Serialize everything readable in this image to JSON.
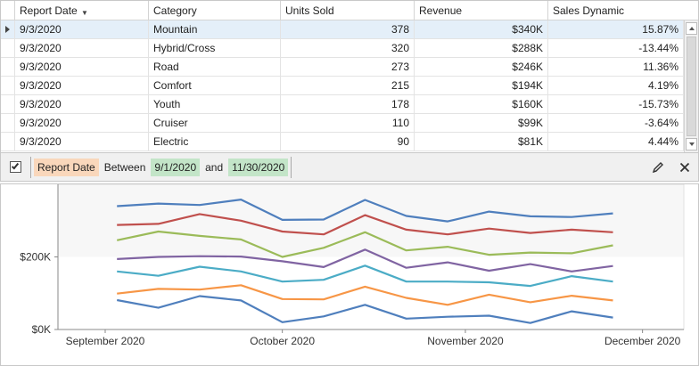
{
  "grid": {
    "columns": [
      {
        "key": "date",
        "label": "Report Date",
        "filtered": true
      },
      {
        "key": "category",
        "label": "Category"
      },
      {
        "key": "units",
        "label": "Units Sold"
      },
      {
        "key": "revenue",
        "label": "Revenue"
      },
      {
        "key": "sales",
        "label": "Sales Dynamic"
      }
    ],
    "rows": [
      {
        "date": "9/3/2020",
        "category": "Mountain",
        "units": "378",
        "revenue": "$340K",
        "sales": "15.87%",
        "selected": true
      },
      {
        "date": "9/3/2020",
        "category": "Hybrid/Cross",
        "units": "320",
        "revenue": "$288K",
        "sales": "-13.44%"
      },
      {
        "date": "9/3/2020",
        "category": "Road",
        "units": "273",
        "revenue": "$246K",
        "sales": "11.36%"
      },
      {
        "date": "9/3/2020",
        "category": "Comfort",
        "units": "215",
        "revenue": "$194K",
        "sales": "4.19%"
      },
      {
        "date": "9/3/2020",
        "category": "Youth",
        "units": "178",
        "revenue": "$160K",
        "sales": "-15.73%"
      },
      {
        "date": "9/3/2020",
        "category": "Cruiser",
        "units": "110",
        "revenue": "$99K",
        "sales": "-3.64%"
      },
      {
        "date": "9/3/2020",
        "category": "Electric",
        "units": "90",
        "revenue": "$81K",
        "sales": "4.44%"
      }
    ]
  },
  "filter_panel": {
    "enabled": true,
    "field": "Report Date",
    "operator": "Between",
    "value_from": "9/1/2020",
    "conjunction": "and",
    "value_to": "11/30/2020"
  },
  "chart_data": {
    "type": "line",
    "title": "",
    "xlabel": "",
    "ylabel": "",
    "ylim": [
      0,
      400000
    ],
    "x_ticks": [
      {
        "date": "2020-09-01",
        "label": "September 2020"
      },
      {
        "date": "2020-10-01",
        "label": "October 2020"
      },
      {
        "date": "2020-11-01",
        "label": "November 2020"
      },
      {
        "date": "2020-12-01",
        "label": "December 2020"
      }
    ],
    "y_ticks": [
      {
        "value": 0,
        "label": "$0K"
      },
      {
        "value": 200000,
        "label": "$200K"
      }
    ],
    "x": [
      "2020-09-03",
      "2020-09-10",
      "2020-09-17",
      "2020-09-24",
      "2020-10-01",
      "2020-10-08",
      "2020-10-15",
      "2020-10-22",
      "2020-10-29",
      "2020-11-05",
      "2020-11-12",
      "2020-11-19",
      "2020-11-26"
    ],
    "series": [
      {
        "color": "#4f7fbd",
        "values": [
          340000,
          347000,
          343000,
          358000,
          302000,
          303000,
          357000,
          313000,
          298000,
          325000,
          312000,
          310000,
          320000
        ]
      },
      {
        "color": "#c0504d",
        "values": [
          288000,
          291000,
          318000,
          300000,
          270000,
          262000,
          315000,
          275000,
          262000,
          278000,
          266000,
          275000,
          268000
        ]
      },
      {
        "color": "#9bbb59",
        "values": [
          246000,
          270000,
          258000,
          248000,
          200000,
          225000,
          268000,
          218000,
          228000,
          206000,
          212000,
          210000,
          232000
        ]
      },
      {
        "color": "#8064a2",
        "values": [
          194000,
          200000,
          202000,
          201000,
          188000,
          172000,
          220000,
          170000,
          185000,
          162000,
          180000,
          160000,
          175000
        ]
      },
      {
        "color": "#4bacc6",
        "values": [
          160000,
          148000,
          173000,
          160000,
          132000,
          137000,
          176000,
          132000,
          132000,
          130000,
          120000,
          147000,
          132000
        ]
      },
      {
        "color": "#f79646",
        "values": [
          99000,
          112000,
          110000,
          122000,
          84000,
          83000,
          118000,
          87000,
          68000,
          96000,
          75000,
          93000,
          80000
        ]
      },
      {
        "color": "#4f7fbd",
        "values": [
          81000,
          60000,
          92000,
          80000,
          20000,
          36000,
          68000,
          30000,
          35000,
          38000,
          18000,
          50000,
          33000
        ]
      }
    ],
    "grid": false,
    "legend": "none",
    "plot_background": "#f7f7f7"
  }
}
